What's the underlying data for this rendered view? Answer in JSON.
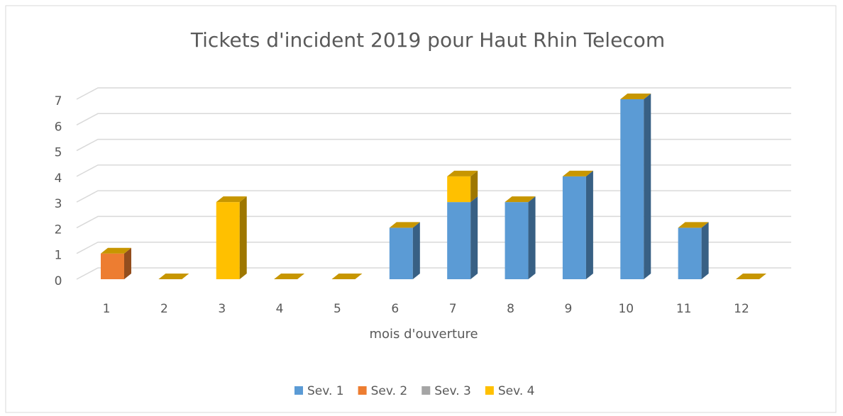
{
  "chart_data": {
    "type": "bar3d_stacked",
    "title": "Tickets d'incident 2019 pour Haut Rhin Telecom",
    "x_label": "mois d'ouverture",
    "categories": [
      "1",
      "2",
      "3",
      "4",
      "5",
      "6",
      "7",
      "8",
      "9",
      "10",
      "11",
      "12"
    ],
    "series": [
      {
        "name": "Sev. 1",
        "color": "#5b9bd5",
        "values": [
          0,
          0,
          0,
          0,
          0,
          2,
          3,
          3,
          4,
          7,
          2,
          0
        ]
      },
      {
        "name": "Sev. 2",
        "color": "#ed7d31",
        "values": [
          1,
          0,
          0,
          0,
          0,
          0,
          0,
          0,
          0,
          0,
          0,
          0
        ]
      },
      {
        "name": "Sev. 3",
        "color": "#a5a5a5",
        "values": [
          0,
          0,
          0,
          0,
          0,
          0,
          0,
          0,
          0,
          0,
          0,
          0
        ]
      },
      {
        "name": "Sev. 4",
        "color": "#ffc000",
        "values": [
          0,
          0,
          3,
          0,
          0,
          0,
          1,
          0,
          0,
          0,
          0,
          0
        ]
      }
    ],
    "ylim": [
      0,
      7
    ],
    "yticks": [
      0,
      1,
      2,
      3,
      4,
      5,
      6,
      7
    ],
    "grid": true,
    "legend": "bottom"
  }
}
